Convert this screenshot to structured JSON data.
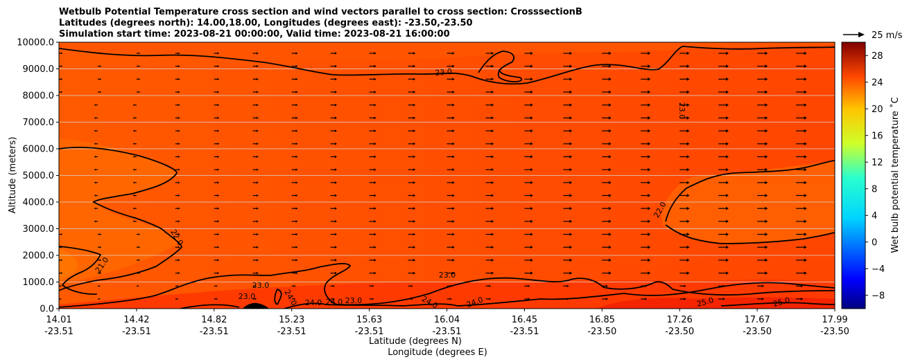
{
  "chart_data": {
    "type": "contour-quiver",
    "title_lines": [
      "Wetbulb Potential Temperature cross section and wind vectors parallel to cross section: CrosssectionB",
      "Latitudes (degrees north): 14.00,18.00, Longitudes (degrees east): -23.50,-23.50",
      "Simulation start time: 2023-08-21 00:00:00, Valid time: 2023-08-21 16:00:00"
    ],
    "ylabel": "Altitude (meters)",
    "xlabel_lat": "Latitude (degrees N)",
    "xlabel_lon": "Longitude (degrees E)",
    "ylim": [
      0,
      10000
    ],
    "y_ticks": [
      "0.0",
      "1000.0",
      "2000.0",
      "3000.0",
      "4000.0",
      "5000.0",
      "6000.0",
      "7000.0",
      "8000.0",
      "9000.0",
      "10000.0"
    ],
    "x_ticks": [
      {
        "lat": "14.01",
        "lon": "-23.51"
      },
      {
        "lat": "14.42",
        "lon": "-23.51"
      },
      {
        "lat": "14.82",
        "lon": "-23.51"
      },
      {
        "lat": "15.23",
        "lon": "-23.51"
      },
      {
        "lat": "15.63",
        "lon": "-23.51"
      },
      {
        "lat": "16.04",
        "lon": "-23.51"
      },
      {
        "lat": "16.45",
        "lon": "-23.51"
      },
      {
        "lat": "16.85",
        "lon": "-23.50"
      },
      {
        "lat": "17.26",
        "lon": "-23.50"
      },
      {
        "lat": "17.67",
        "lon": "-23.50"
      },
      {
        "lat": "17.99",
        "lon": "-23.50"
      }
    ],
    "colorbar": {
      "label": "Wet bulb potential temperature $^\\circ$C",
      "label_text": "Wet bulb potential temperature ˚C",
      "range": [
        -10,
        30
      ],
      "ticks": [
        "28",
        "24",
        "20",
        "16",
        "12",
        "8",
        "4",
        "0",
        "−4",
        "−8"
      ]
    },
    "quiver_key": {
      "label": "25 m/s",
      "value": 25
    },
    "contour_labels": [
      "23.0",
      "23.0",
      "22.0",
      "21.0",
      "23.0",
      "23.0",
      "24.0",
      "24.0",
      "24.0",
      "23.0",
      "24.0",
      "24.0",
      "22.0",
      "23.0",
      "25.0",
      "25.0"
    ],
    "contour_levels": [
      21,
      22,
      23,
      24,
      25
    ]
  }
}
